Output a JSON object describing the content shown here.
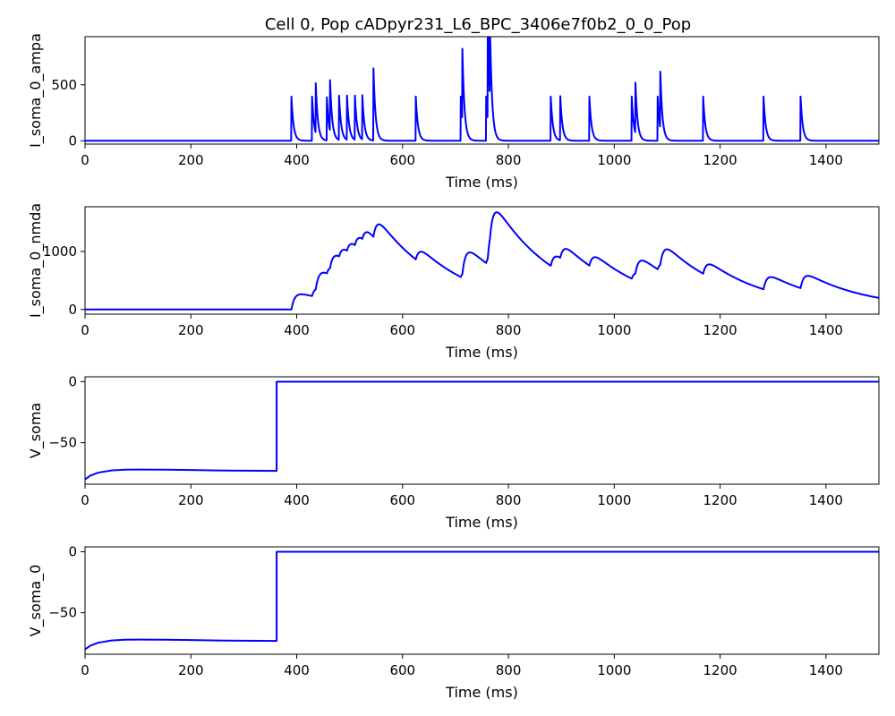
{
  "figure": {
    "title": "Cell 0, Pop cADpyr231_L6_BPC_3406e7f0b2_0_0_Pop"
  },
  "chart_data": [
    {
      "type": "line",
      "ylabel": "I_soma_0_ampa",
      "xlabel": "Time (ms)",
      "xlim": [
        0,
        1500
      ],
      "ylim": [
        -30,
        930
      ],
      "xticks": [
        0,
        200,
        400,
        600,
        800,
        1000,
        1200,
        1400
      ],
      "yticks": [
        0,
        500
      ],
      "yticklabels": [
        "0",
        "500"
      ],
      "color": "#0000ff",
      "baseline": 0,
      "events": [
        {
          "t": 390,
          "peak": 395,
          "tau": 4
        },
        {
          "t": 429,
          "peak": 395,
          "tau": 4
        },
        {
          "t": 436,
          "peak": 445,
          "tau": 4
        },
        {
          "t": 457,
          "peak": 385,
          "tau": 4
        },
        {
          "t": 463,
          "peak": 455,
          "tau": 4
        },
        {
          "t": 480,
          "peak": 395,
          "tau": 4
        },
        {
          "t": 495,
          "peak": 395,
          "tau": 4
        },
        {
          "t": 510,
          "peak": 395,
          "tau": 4
        },
        {
          "t": 524,
          "peak": 395,
          "tau": 4
        },
        {
          "t": 545,
          "peak": 645,
          "tau": 4
        },
        {
          "t": 625,
          "peak": 395,
          "tau": 4
        },
        {
          "t": 710,
          "peak": 395,
          "tau": 4
        },
        {
          "t": 713,
          "peak": 635,
          "tau": 4
        },
        {
          "t": 758,
          "peak": 395,
          "tau": 4
        },
        {
          "t": 761,
          "peak": 880,
          "tau": 4
        },
        {
          "t": 765,
          "peak": 680,
          "tau": 4
        },
        {
          "t": 880,
          "peak": 395,
          "tau": 4
        },
        {
          "t": 898,
          "peak": 395,
          "tau": 4
        },
        {
          "t": 953,
          "peak": 395,
          "tau": 4
        },
        {
          "t": 1033,
          "peak": 395,
          "tau": 4
        },
        {
          "t": 1040,
          "peak": 450,
          "tau": 4
        },
        {
          "t": 1082,
          "peak": 395,
          "tau": 4
        },
        {
          "t": 1087,
          "peak": 505,
          "tau": 4
        },
        {
          "t": 1168,
          "peak": 395,
          "tau": 4
        },
        {
          "t": 1282,
          "peak": 395,
          "tau": 4
        },
        {
          "t": 1352,
          "peak": 395,
          "tau": 4
        }
      ]
    },
    {
      "type": "line",
      "ylabel": "I_soma_0_nmda",
      "xlabel": "Time (ms)",
      "xlim": [
        0,
        1500
      ],
      "ylim": [
        -80,
        1770
      ],
      "xticks": [
        0,
        200,
        400,
        600,
        800,
        1000,
        1200,
        1400
      ],
      "yticks": [
        0,
        1000
      ],
      "yticklabels": [
        "0",
        "1000"
      ],
      "color": "#0000ff",
      "baseline": 0,
      "decay_tau": 120,
      "events": [
        {
          "t": 390,
          "jump": 300
        },
        {
          "t": 429,
          "jump": 190
        },
        {
          "t": 436,
          "jump": 320
        },
        {
          "t": 457,
          "jump": 180
        },
        {
          "t": 463,
          "jump": 270
        },
        {
          "t": 480,
          "jump": 220
        },
        {
          "t": 495,
          "jump": 230
        },
        {
          "t": 510,
          "jump": 250
        },
        {
          "t": 524,
          "jump": 240
        },
        {
          "t": 545,
          "jump": 390
        },
        {
          "t": 625,
          "jump": 255
        },
        {
          "t": 710,
          "jump": 160
        },
        {
          "t": 713,
          "jump": 420
        },
        {
          "t": 758,
          "jump": 245
        },
        {
          "t": 761,
          "jump": 590
        },
        {
          "t": 765,
          "jump": 320
        },
        {
          "t": 880,
          "jump": 280
        },
        {
          "t": 898,
          "jump": 270
        },
        {
          "t": 953,
          "jump": 260
        },
        {
          "t": 1033,
          "jump": 175
        },
        {
          "t": 1040,
          "jump": 285
        },
        {
          "t": 1082,
          "jump": 185
        },
        {
          "t": 1087,
          "jump": 330
        },
        {
          "t": 1168,
          "jump": 265
        },
        {
          "t": 1282,
          "jump": 290
        },
        {
          "t": 1352,
          "jump": 295
        }
      ]
    },
    {
      "type": "line",
      "ylabel": "V_soma",
      "xlabel": "Time (ms)",
      "xlim": [
        0,
        1500
      ],
      "ylim": [
        -84,
        4
      ],
      "xticks": [
        0,
        200,
        400,
        600,
        800,
        1000,
        1200,
        1400
      ],
      "yticks": [
        0,
        -50
      ],
      "yticklabels": [
        "0",
        "−50"
      ],
      "color": "#0000ff",
      "points": [
        [
          0,
          -80
        ],
        [
          10,
          -77
        ],
        [
          25,
          -74.5
        ],
        [
          50,
          -72.7
        ],
        [
          75,
          -72.1
        ],
        [
          100,
          -72
        ],
        [
          150,
          -72.1
        ],
        [
          200,
          -72.4
        ],
        [
          250,
          -72.7
        ],
        [
          300,
          -72.9
        ],
        [
          362,
          -73.1
        ],
        [
          362,
          0
        ],
        [
          1500,
          0
        ]
      ]
    },
    {
      "type": "line",
      "ylabel": "V_soma_0",
      "xlabel": "Time (ms)",
      "xlim": [
        0,
        1500
      ],
      "ylim": [
        -84,
        4
      ],
      "xticks": [
        0,
        200,
        400,
        600,
        800,
        1000,
        1200,
        1400
      ],
      "yticks": [
        0,
        -50
      ],
      "yticklabels": [
        "0",
        "−50"
      ],
      "color": "#0000ff",
      "points": [
        [
          0,
          -80
        ],
        [
          10,
          -77
        ],
        [
          25,
          -74.5
        ],
        [
          50,
          -72.7
        ],
        [
          75,
          -72.1
        ],
        [
          100,
          -72
        ],
        [
          150,
          -72.1
        ],
        [
          200,
          -72.4
        ],
        [
          250,
          -72.7
        ],
        [
          300,
          -72.9
        ],
        [
          362,
          -73.1
        ],
        [
          362,
          0
        ],
        [
          1500,
          0
        ]
      ]
    }
  ]
}
